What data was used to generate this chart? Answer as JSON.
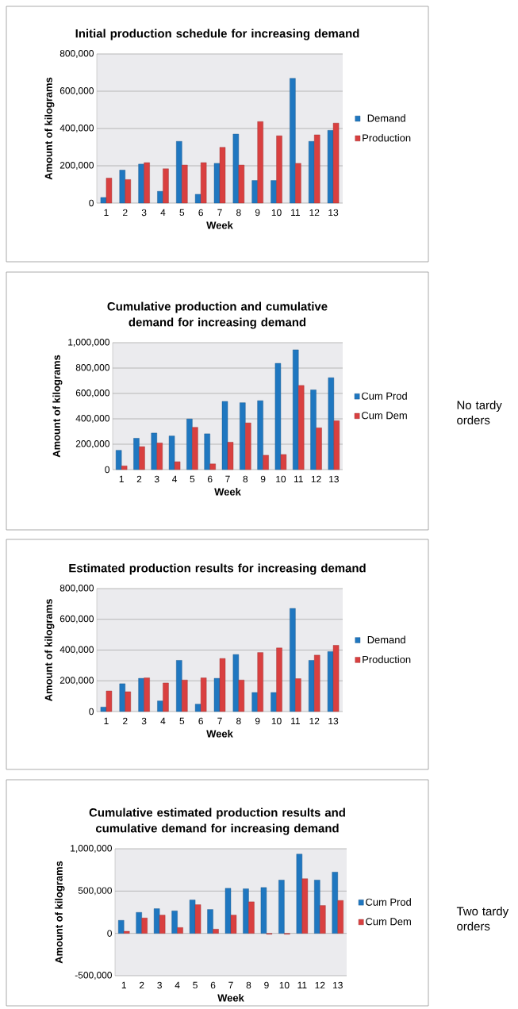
{
  "chart_data": [
    {
      "type": "bar",
      "title": "Initial production schedule for increasing demand",
      "xlabel": "Week",
      "ylabel": "Amount of kilograms",
      "categories": [
        "1",
        "2",
        "3",
        "4",
        "5",
        "6",
        "7",
        "8",
        "9",
        "10",
        "11",
        "12",
        "13"
      ],
      "series": [
        {
          "name": "Demand",
          "color": "#1f77c0",
          "values": [
            30000,
            177000,
            209000,
            63000,
            331000,
            47000,
            213000,
            370000,
            121000,
            121000,
            669000,
            331000,
            390000
          ]
        },
        {
          "name": "Production",
          "color": "#d94040",
          "values": [
            134000,
            126000,
            217000,
            184000,
            204000,
            217000,
            299000,
            204000,
            437000,
            361000,
            213000,
            366000,
            429000
          ]
        }
      ],
      "ylim": [
        0,
        800000
      ],
      "yticks": [
        0,
        {
          "value": 200000,
          "label": "200,000"
        },
        {
          "value": 400000,
          "label": "400,000"
        },
        {
          "value": 600000,
          "label": "600,000"
        },
        {
          "value": 800000,
          "label": "800,000"
        }
      ],
      "grid": "y",
      "legend": "right"
    },
    {
      "type": "bar",
      "title": "Cumulative production and cumulative demand for increasing demand",
      "xlabel": "Week",
      "ylabel": "Amount of kilograms",
      "categories": [
        "1",
        "2",
        "3",
        "4",
        "5",
        "6",
        "7",
        "8",
        "9",
        "10",
        "11",
        "12",
        "13"
      ],
      "series": [
        {
          "name": "Cum Prod",
          "color": "#1f77c0",
          "values": [
            152000,
            247000,
            288000,
            265000,
            399000,
            282000,
            537000,
            527000,
            543000,
            837000,
            944000,
            628000,
            724000
          ]
        },
        {
          "name": "Cum Dem",
          "color": "#d94040",
          "values": [
            29000,
            181000,
            210000,
            62000,
            333000,
            45000,
            216000,
            368000,
            113000,
            119000,
            663000,
            329000,
            385000
          ]
        }
      ],
      "ylim": [
        0,
        1000000
      ],
      "yticks": [
        0,
        {
          "value": 200000,
          "label": "200,000"
        },
        {
          "value": 400000,
          "label": "400,000"
        },
        {
          "value": 600000,
          "label": "600,000"
        },
        {
          "value": 800000,
          "label": "800,000"
        },
        {
          "value": 1000000,
          "label": "1,000,000"
        }
      ],
      "grid": "y",
      "legend": "right",
      "annotations": [
        "No tardy orders"
      ]
    },
    {
      "type": "bar",
      "title": "Estimated production results for increasing demand",
      "xlabel": "Week",
      "ylabel": "Amount of kilograms",
      "categories": [
        "1",
        "2",
        "3",
        "4",
        "5",
        "6",
        "7",
        "8",
        "9",
        "10",
        "11",
        "12",
        "13"
      ],
      "series": [
        {
          "name": "Demand",
          "color": "#1f77c0",
          "values": [
            29000,
            181000,
            216000,
            69000,
            333000,
            48000,
            216000,
            371000,
            124000,
            124000,
            671000,
            333000,
            390000
          ]
        },
        {
          "name": "Production",
          "color": "#d94040",
          "values": [
            134000,
            129000,
            219000,
            186000,
            205000,
            219000,
            345000,
            205000,
            384000,
            414000,
            214000,
            367000,
            431000
          ]
        }
      ],
      "ylim": [
        0,
        800000
      ],
      "yticks": [
        0,
        {
          "value": 200000,
          "label": "200,000"
        },
        {
          "value": 400000,
          "label": "400,000"
        },
        {
          "value": 600000,
          "label": "600,000"
        },
        {
          "value": 800000,
          "label": "800,000"
        }
      ],
      "grid": "y",
      "legend": "right"
    },
    {
      "type": "bar",
      "title": "Cumulative estimated production results and cumulative demand for increasing demand",
      "xlabel": "Week",
      "ylabel": "Amount of kilograms",
      "categories": [
        "1",
        "2",
        "3",
        "4",
        "5",
        "6",
        "7",
        "8",
        "9",
        "10",
        "11",
        "12",
        "13"
      ],
      "series": [
        {
          "name": "Cum Prod",
          "color": "#1f77c0",
          "values": [
            154000,
            248000,
            292000,
            266000,
            395000,
            282000,
            533000,
            527000,
            542000,
            630000,
            937000,
            630000,
            724000
          ]
        },
        {
          "name": "Cum Dem",
          "color": "#d94040",
          "values": [
            25000,
            182000,
            216000,
            69000,
            339000,
            50000,
            216000,
            373000,
            -10000,
            -10000,
            646000,
            329000,
            389000
          ]
        }
      ],
      "ylim": [
        -500000,
        1000000
      ],
      "yticks": [
        {
          "value": -500000,
          "label": "-500,000"
        },
        0,
        {
          "value": 500000,
          "label": "500,000"
        },
        {
          "value": 1000000,
          "label": "1,000,000"
        }
      ],
      "grid": "y",
      "legend": "right",
      "annotations": [
        "Two tardy orders"
      ]
    }
  ]
}
